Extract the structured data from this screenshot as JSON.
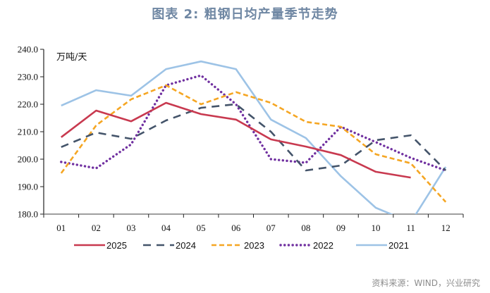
{
  "title": "图表 2:  粗钢日均产量季节走势",
  "source": "资料来源：WIND，兴业研究",
  "chart_data": {
    "type": "line",
    "title": "图表 2:  粗钢日均产量季节走势",
    "unit_label": "万吨/天",
    "xlabel": "",
    "ylabel": "万吨/天",
    "categories": [
      "01",
      "02",
      "03",
      "04",
      "05",
      "06",
      "07",
      "08",
      "09",
      "10",
      "11",
      "12"
    ],
    "ylim": [
      180,
      240
    ],
    "yticks": [
      "180.0",
      "190.0",
      "200.0",
      "210.0",
      "220.0",
      "230.0",
      "240.0"
    ],
    "ytick_values": [
      180,
      190,
      200,
      210,
      220,
      230,
      240
    ],
    "grid": false,
    "legend_position": "bottom",
    "series": [
      {
        "name": "2025",
        "color": "#c8394f",
        "style": "solid",
        "values": [
          208.0,
          217.7,
          213.8,
          220.5,
          216.4,
          214.4,
          207.2,
          204.6,
          201.5,
          195.4,
          193.3,
          null
        ]
      },
      {
        "name": "2024",
        "color": "#44546a",
        "style": "dashed",
        "values": [
          204.4,
          209.7,
          207.4,
          214.1,
          218.7,
          220.0,
          210.0,
          195.9,
          197.7,
          206.9,
          208.7,
          195.9
        ]
      },
      {
        "name": "2023",
        "color": "#f5a623",
        "style": "short-dashed",
        "values": [
          194.9,
          212.3,
          221.8,
          226.9,
          220.0,
          224.4,
          220.5,
          213.6,
          211.8,
          201.8,
          198.5,
          184.4
        ]
      },
      {
        "name": "2022",
        "color": "#7030a0",
        "style": "dotted",
        "values": [
          199.0,
          196.7,
          205.4,
          226.9,
          230.5,
          220.0,
          200.0,
          198.7,
          211.8,
          206.2,
          200.5,
          195.9
        ]
      },
      {
        "name": "2021",
        "color": "#9dc3e6",
        "style": "solid",
        "values": [
          219.5,
          225.1,
          223.1,
          232.8,
          235.6,
          232.8,
          214.4,
          207.7,
          193.8,
          182.3,
          177.0,
          197.2
        ]
      }
    ]
  }
}
